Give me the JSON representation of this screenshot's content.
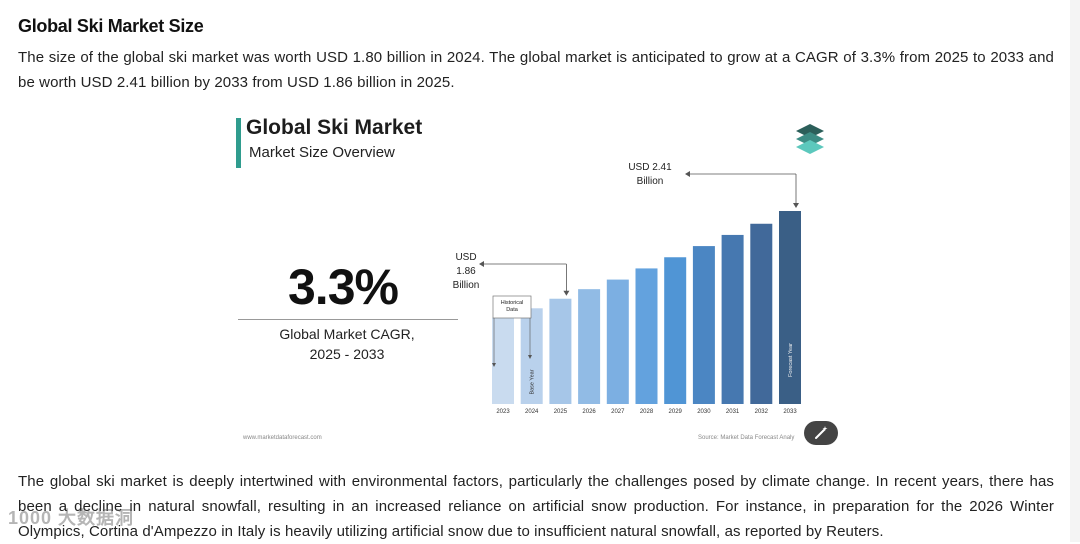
{
  "article": {
    "heading": "Global Ski Market Size",
    "paragraph1": "The size of the global ski market was worth USD 1.80 billion in 2024. The global market is anticipated to grow at a CAGR of 3.3% from 2025 to 2033 and be worth USD 2.41 billion by 2033 from USD 1.86 billion in 2025.",
    "paragraph2": "The global ski market is deeply intertwined with environmental factors, particularly the challenges posed by climate change. In recent years, there has been a decline in natural snowfall, resulting in an increased reliance on artificial snow production. For instance, in preparation for the 2026 Winter Olympics, Cortina d'Ampezzo in Italy is heavily utilizing artificial snow due to insufficient natural snowfall, as reported by Reuters."
  },
  "figure": {
    "title": "Global Ski Market",
    "subtitle": "Market Size Overview",
    "cagr_value": "3.3%",
    "cagr_label": "Global Market CAGR, 2025 - 2033",
    "footer_left": "www.marketdataforecast.com",
    "footer_right": "Source: Market Data Forecast Analy",
    "logo_icon": "stacked-layers-icon",
    "edit_icon": "magic-wand-icon"
  },
  "watermark": "1000 大数据洞",
  "chart_data": {
    "type": "bar",
    "categories": [
      "2023",
      "2024",
      "2025",
      "2026",
      "2027",
      "2028",
      "2029",
      "2030",
      "2031",
      "2032",
      "2033"
    ],
    "values": [
      1.74,
      1.8,
      1.86,
      1.92,
      1.98,
      2.05,
      2.12,
      2.19,
      2.26,
      2.33,
      2.41
    ],
    "bar_colors": [
      "#c9dbef",
      "#b9d1ec",
      "#a6c6e8",
      "#91bbe5",
      "#7cafe2",
      "#63a2de",
      "#5095d5",
      "#4b86c3",
      "#4678b0",
      "#41699a",
      "#3a5f86"
    ],
    "annotations": {
      "start_label": "USD\n1.86\nBillion",
      "end_label": "USD 2.41\nBillion",
      "historical_label": "Historical\nData",
      "base_year_label": "Base Year",
      "forecast_year_label": "Forecast Year"
    },
    "title": "",
    "xlabel": "",
    "ylabel": "",
    "ylim": [
      0,
      2.5
    ]
  }
}
